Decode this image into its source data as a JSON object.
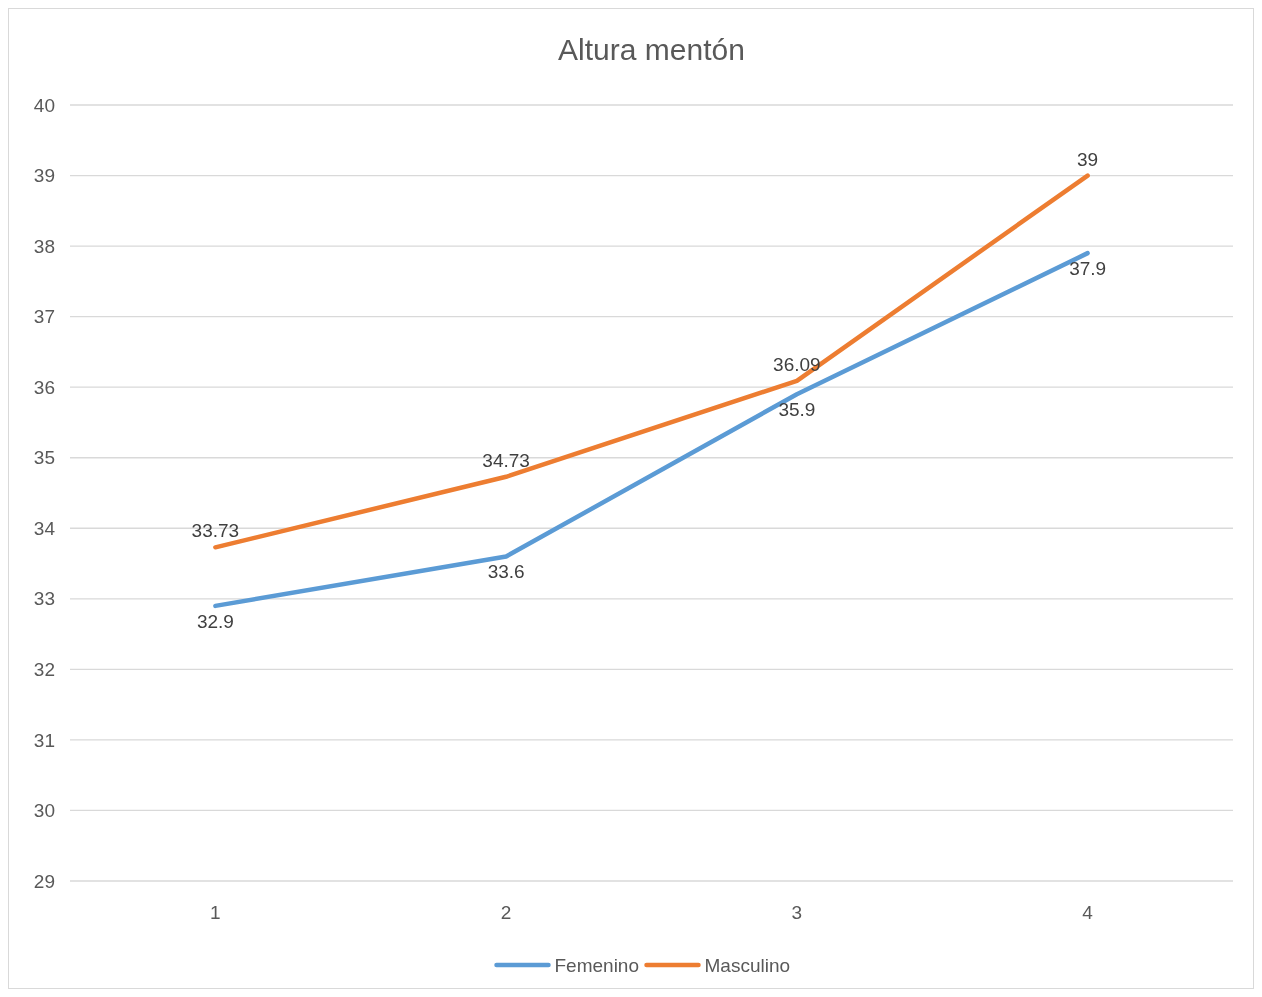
{
  "chart_data": {
    "type": "line",
    "title": "Altura mentón",
    "categories": [
      "1",
      "2",
      "3",
      "4"
    ],
    "series": [
      {
        "name": "Femenino",
        "color": "#5b9bd5",
        "values": [
          32.9,
          33.6,
          35.9,
          37.9
        ]
      },
      {
        "name": "Masculino",
        "color": "#ed7d31",
        "values": [
          33.73,
          34.73,
          36.09,
          39
        ]
      }
    ],
    "ylim": [
      29,
      40
    ],
    "yticks": [
      29,
      30,
      31,
      32,
      33,
      34,
      35,
      36,
      37,
      38,
      39,
      40
    ],
    "grid": "y",
    "legend": "bottom",
    "data_labels": true
  }
}
